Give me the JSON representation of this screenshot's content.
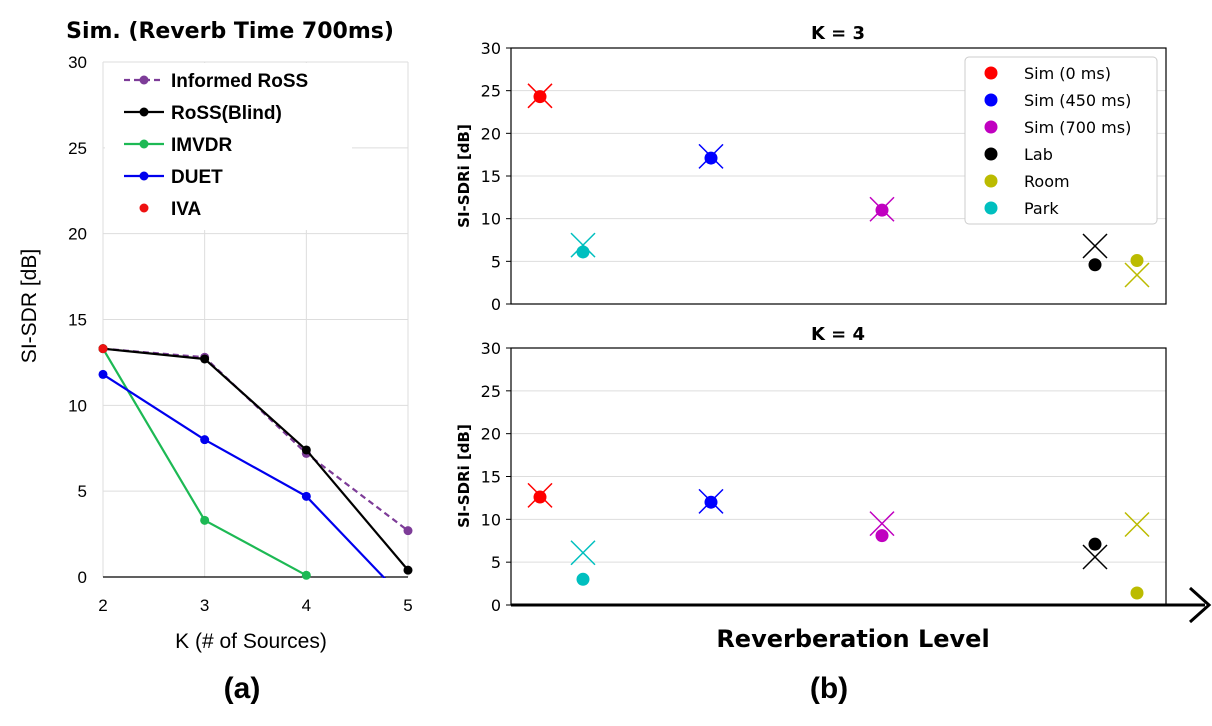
{
  "chart_data": [
    {
      "type": "line",
      "title": "Sim. (Reverb Time 700ms)",
      "xlabel": "K (# of Sources)",
      "ylabel": "SI-SDR [dB]",
      "panel_label": "(a)",
      "xlim": [
        2,
        5
      ],
      "ylim": [
        0,
        30
      ],
      "xticks": [
        "2",
        "3",
        "4",
        "5"
      ],
      "yticks": [
        "0",
        "5",
        "10",
        "15",
        "20",
        "25",
        "30"
      ],
      "grid": true,
      "legend_position": "top-right",
      "x": [
        2,
        3,
        4,
        5
      ],
      "series": [
        {
          "name": "Informed RoSS",
          "color": "#7d3c98",
          "dashed": true,
          "values": [
            13.3,
            12.8,
            7.2,
            2.7
          ]
        },
        {
          "name": "RoSS(Blind)",
          "color": "#000000",
          "dashed": false,
          "values": [
            13.3,
            12.7,
            7.4,
            0.4
          ]
        },
        {
          "name": "IMVDR",
          "color": "#1db954",
          "dashed": false,
          "values": [
            13.3,
            3.3,
            0.1,
            null
          ]
        },
        {
          "name": "DUET",
          "color": "#0000ee",
          "dashed": false,
          "values": [
            11.8,
            8.0,
            4.7,
            -1.5
          ]
        },
        {
          "name": "IVA",
          "color": "#ee1111",
          "dashed": false,
          "values": [
            13.3,
            null,
            null,
            null
          ]
        }
      ]
    },
    {
      "type": "scatter",
      "title": "K = 3",
      "xlabel": "Reverberation Level",
      "ylabel": "SI-SDRi [dB]",
      "panel_label": "(b)",
      "ylim": [
        0,
        30
      ],
      "yticks": [
        "0",
        "5",
        "10",
        "15",
        "20",
        "25",
        "30"
      ],
      "grid": true,
      "legend_position": "top-right",
      "legend": [
        {
          "name": "Sim (0 ms)",
          "color": "#ff0000"
        },
        {
          "name": "Sim (450 ms)",
          "color": "#0000ff"
        },
        {
          "name": "Sim (700 ms)",
          "color": "#c000c0"
        },
        {
          "name": "Lab",
          "color": "#000000"
        },
        {
          "name": "Room",
          "color": "#bbbb00"
        },
        {
          "name": "Park",
          "color": "#00bfbf"
        }
      ],
      "points": [
        {
          "series": "Sim (0 ms)",
          "dot": 24.3,
          "cross": 24.4
        },
        {
          "series": "Park",
          "dot": 6.1,
          "cross": 6.9
        },
        {
          "series": "Sim (450 ms)",
          "dot": 17.1,
          "cross": 17.3
        },
        {
          "series": "Sim (700 ms)",
          "dot": 11.0,
          "cross": 11.1
        },
        {
          "series": "Lab",
          "dot": 4.6,
          "cross": 6.8
        },
        {
          "series": "Room",
          "dot": 5.1,
          "cross": 3.4
        }
      ]
    },
    {
      "type": "scatter",
      "title": "K = 4",
      "xlabel": "Reverberation Level",
      "ylabel": "SI-SDRi [dB]",
      "ylim": [
        0,
        30
      ],
      "yticks": [
        "0",
        "5",
        "10",
        "15",
        "20",
        "25",
        "30"
      ],
      "grid": true,
      "points": [
        {
          "series": "Sim (0 ms)",
          "dot": 12.6,
          "cross": 12.8
        },
        {
          "series": "Park",
          "dot": 3.0,
          "cross": 6.1
        },
        {
          "series": "Sim (450 ms)",
          "dot": 12.0,
          "cross": 12.1
        },
        {
          "series": "Sim (700 ms)",
          "dot": 8.1,
          "cross": 9.5
        },
        {
          "series": "Lab",
          "dot": 7.1,
          "cross": 5.6
        },
        {
          "series": "Room",
          "dot": 1.4,
          "cross": 9.4
        }
      ]
    }
  ]
}
